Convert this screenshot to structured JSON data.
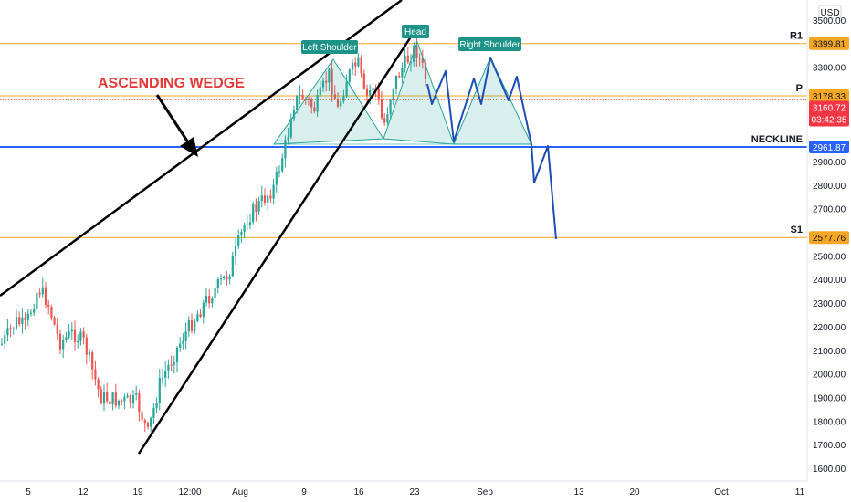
{
  "chart_data": {
    "type": "candlestick",
    "currency": "USD",
    "y_axis": {
      "ticks": [
        1600,
        1700,
        1800,
        1900,
        2000,
        2100,
        2200,
        2300,
        2400,
        2500,
        2600,
        2700,
        2800,
        2900,
        3000,
        3100,
        3200,
        3300,
        3400,
        3500
      ],
      "tick_labels": [
        "1600.00",
        "1700.00",
        "1800.00",
        "1900.00",
        "2000.00",
        "2100.00",
        "2200.00",
        "2300.00",
        "2400.00",
        "2500.00",
        "2600.00",
        "2700.00",
        "2800.00",
        "2900.00",
        "3000.00",
        "3100.00",
        "3200.00",
        "3300.00",
        "3400.00",
        "3500.00"
      ],
      "range": [
        1560,
        3560
      ]
    },
    "x_axis": {
      "labels": [
        "5",
        "12",
        "19",
        "12:00",
        "Aug",
        "9",
        "16",
        "23",
        "Sep",
        "13",
        "20",
        "Oct",
        "11"
      ]
    },
    "levels": [
      {
        "id": "R1",
        "label": "R1",
        "value": 3399.81,
        "tag": "3399.81",
        "color": "#f5a623"
      },
      {
        "id": "P",
        "label": "P",
        "value": 3178.33,
        "tag": "3178.33",
        "color": "#f5a623"
      },
      {
        "id": "NECKLINE",
        "label": "NECKLINE",
        "value": 2961.87,
        "tag": "2961.87",
        "color": "#2962ff"
      },
      {
        "id": "S1",
        "label": "S1",
        "value": 2577.76,
        "tag": "2577.76",
        "color": "#f5a623"
      }
    ],
    "current_price": {
      "value": 3160.72,
      "tag": "3160.72",
      "countdown": "03:42:35",
      "color": "#f23645"
    },
    "annotations": {
      "wedge": "ASCENDING WEDGE",
      "left_shoulder": "Left Shoulder",
      "head": "Head",
      "right_shoulder": "Right Shoulder"
    },
    "colors": {
      "up": "#26a69a",
      "down": "#ef5350",
      "projection": "#1e4fb4",
      "wedge": "#000000",
      "pattern_fill": "#26a69a"
    }
  }
}
